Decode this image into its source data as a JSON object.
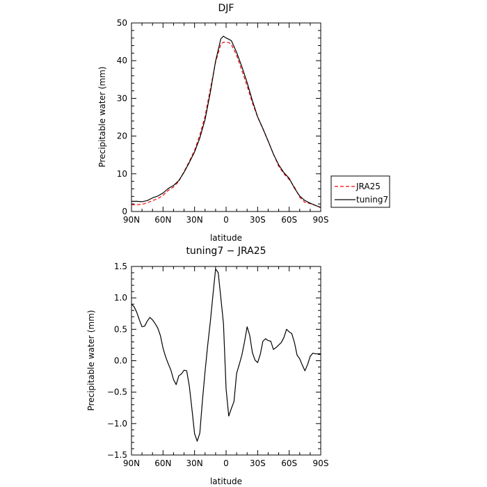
{
  "chart_data": [
    {
      "type": "line",
      "title": "DJF",
      "xlabel": "latitude",
      "ylabel": "Precipitable water (mm)",
      "xlim": [
        90,
        -90
      ],
      "ylim": [
        0,
        50
      ],
      "x_ticks": [
        90,
        60,
        30,
        0,
        -30,
        -60,
        -90
      ],
      "x_tick_labels": [
        "90N",
        "60N",
        "30N",
        "0",
        "30S",
        "60S",
        "90S"
      ],
      "y_ticks": [
        0,
        10,
        20,
        30,
        40,
        50
      ],
      "y_tick_labels": [
        "0",
        "10",
        "20",
        "30",
        "40",
        "50"
      ],
      "legend_position": "right",
      "series": [
        {
          "name": "JRA25",
          "color": "#ff0000",
          "dash": "dashed",
          "x": [
            90,
            85,
            80,
            75,
            70,
            65,
            60,
            55,
            50,
            45,
            40,
            35,
            30,
            25,
            20,
            15,
            10,
            5,
            2.5,
            0,
            -2.5,
            -5,
            -10,
            -15,
            -20,
            -25,
            -30,
            -35,
            -40,
            -45,
            -50,
            -55,
            -60,
            -65,
            -70,
            -75,
            -80,
            -85,
            -90
          ],
          "y": [
            1.8,
            1.8,
            1.9,
            2.3,
            2.9,
            3.4,
            4.3,
            5.6,
            6.5,
            8.0,
            10.6,
            13.3,
            16.2,
            20.3,
            25.3,
            32.5,
            39.6,
            44.4,
            44.9,
            44.9,
            44.8,
            44.3,
            41.4,
            37.4,
            33.3,
            28.8,
            25.0,
            21.9,
            18.6,
            15.3,
            12.0,
            10.0,
            8.5,
            6.5,
            3.8,
            2.4,
            2.1,
            1.6,
            1.0
          ]
        },
        {
          "name": "tuning7",
          "color": "#000000",
          "dash": "solid",
          "x": [
            90,
            85,
            80,
            75,
            70,
            65,
            60,
            55,
            50,
            45,
            40,
            35,
            30,
            25,
            20,
            15,
            10,
            5,
            2.5,
            0,
            -2.5,
            -5,
            -10,
            -15,
            -20,
            -25,
            -30,
            -35,
            -40,
            -45,
            -50,
            -55,
            -60,
            -65,
            -70,
            -75,
            -80,
            -85,
            -90
          ],
          "y": [
            2.7,
            2.7,
            2.6,
            2.9,
            3.6,
            4.1,
            4.9,
            6.1,
            6.9,
            8.2,
            10.4,
            13.0,
            15.8,
            19.5,
            24.4,
            31.6,
            39.9,
            45.8,
            46.5,
            46.0,
            45.7,
            45.3,
            42.2,
            38.4,
            34.2,
            29.4,
            25.1,
            22.0,
            18.7,
            15.2,
            12.4,
            10.3,
            8.8,
            6.2,
            4.1,
            2.9,
            2.2,
            1.6,
            1.1
          ]
        }
      ]
    },
    {
      "type": "line",
      "title": "tuning7 − JRA25",
      "xlabel": "latitude",
      "ylabel": "Precipitable water (mm)",
      "xlim": [
        90,
        -90
      ],
      "ylim": [
        -1.5,
        1.5
      ],
      "x_ticks": [
        90,
        60,
        30,
        0,
        -30,
        -60,
        -90
      ],
      "x_tick_labels": [
        "90N",
        "60N",
        "30N",
        "0",
        "30S",
        "60S",
        "90S"
      ],
      "y_ticks": [
        1.5,
        1.0,
        0.5,
        0.0,
        -0.5,
        -1.0,
        -1.5
      ],
      "y_tick_labels": [
        "1.5",
        "1.0",
        "0.5",
        "0.0",
        "−0.5",
        "−1.0",
        "−1.5"
      ],
      "series": [
        {
          "name": "",
          "color": "#000000",
          "dash": "solid",
          "x": [
            90,
            87.5,
            85,
            82.5,
            80,
            77.5,
            75,
            72.5,
            70,
            67.5,
            65,
            62.5,
            60,
            57.5,
            55,
            52.5,
            50,
            47.5,
            45,
            42.5,
            40,
            37.5,
            35,
            32.5,
            30,
            27.5,
            25,
            22.5,
            20,
            17.5,
            15,
            12.5,
            10,
            7.5,
            5,
            2.5,
            0,
            -2.5,
            -5,
            -7.5,
            -10,
            -12.5,
            -15,
            -17.5,
            -20,
            -22.5,
            -25,
            -27.5,
            -30,
            -32.5,
            -35,
            -37.5,
            -40,
            -42.5,
            -45,
            -47.5,
            -50,
            -52.5,
            -55,
            -57.5,
            -60,
            -62.5,
            -65,
            -67.5,
            -70,
            -72.5,
            -75,
            -77.5,
            -80,
            -82.5,
            -85,
            -87.5,
            -90
          ],
          "y": [
            0.9,
            0.86,
            0.77,
            0.65,
            0.54,
            0.55,
            0.63,
            0.69,
            0.65,
            0.59,
            0.52,
            0.4,
            0.2,
            0.06,
            -0.05,
            -0.15,
            -0.3,
            -0.38,
            -0.24,
            -0.21,
            -0.15,
            -0.16,
            -0.4,
            -0.77,
            -1.16,
            -1.28,
            -1.15,
            -0.63,
            -0.17,
            0.25,
            0.62,
            1.05,
            1.46,
            1.4,
            1.0,
            0.59,
            -0.45,
            -0.88,
            -0.76,
            -0.65,
            -0.2,
            -0.06,
            0.09,
            0.3,
            0.54,
            0.4,
            0.13,
            0.01,
            -0.03,
            0.1,
            0.31,
            0.35,
            0.32,
            0.31,
            0.18,
            0.21,
            0.25,
            0.29,
            0.37,
            0.5,
            0.46,
            0.43,
            0.29,
            0.09,
            0.03,
            -0.07,
            -0.16,
            -0.06,
            0.07,
            0.12,
            0.11,
            0.11,
            0.11
          ]
        }
      ]
    }
  ]
}
